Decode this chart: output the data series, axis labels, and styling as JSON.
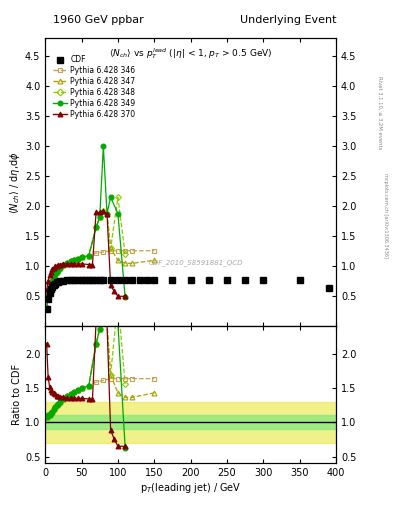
{
  "title_left": "1960 GeV ppbar",
  "title_right": "Underlying Event",
  "subtitle": "$\\langle N_{ch}\\rangle$ vs $p_T^{lead}$ ($|\\eta|$ < 1, $p_T$ > 0.5 GeV)",
  "xlabel": "p$_T$(leading jet) / GeV",
  "ylabel_main": "$\\langle N_{ch}\\rangle$ / d$\\eta$,d$\\phi$",
  "ylabel_ratio": "Ratio to CDF",
  "watermark": "CDF_2010_S8591881_QCD",
  "rivet_label": "Rivet 3.1.10, ≥ 3.2M events",
  "mcplots_label": "mcplots.cern.ch [arXiv:1306.3436]",
  "xlim": [
    0,
    400
  ],
  "ylim_main": [
    0.0,
    4.8
  ],
  "ylim_ratio": [
    0.4,
    2.4
  ],
  "yticks_main": [
    0.5,
    1.0,
    1.5,
    2.0,
    2.5,
    3.0,
    3.5,
    4.0,
    4.5
  ],
  "yticks_ratio": [
    0.5,
    1.0,
    1.5,
    2.0
  ],
  "cdf_x": [
    2,
    4,
    6,
    8,
    10,
    12,
    14,
    16,
    18,
    20,
    25,
    30,
    35,
    40,
    45,
    50,
    55,
    60,
    65,
    70,
    75,
    80,
    90,
    100,
    110,
    120,
    130,
    140,
    150,
    175,
    200,
    225,
    250,
    275,
    300,
    350,
    390
  ],
  "cdf_y": [
    0.28,
    0.45,
    0.56,
    0.62,
    0.66,
    0.69,
    0.71,
    0.73,
    0.74,
    0.75,
    0.76,
    0.77,
    0.77,
    0.77,
    0.77,
    0.77,
    0.77,
    0.77,
    0.77,
    0.77,
    0.77,
    0.77,
    0.77,
    0.77,
    0.77,
    0.77,
    0.77,
    0.77,
    0.77,
    0.77,
    0.77,
    0.77,
    0.77,
    0.77,
    0.77,
    0.77,
    0.64
  ],
  "cdf_yerr": [
    0.04,
    0.03,
    0.03,
    0.02,
    0.02,
    0.02,
    0.02,
    0.02,
    0.02,
    0.02,
    0.02,
    0.02,
    0.02,
    0.02,
    0.02,
    0.02,
    0.02,
    0.02,
    0.02,
    0.02,
    0.02,
    0.02,
    0.02,
    0.02,
    0.02,
    0.02,
    0.02,
    0.02,
    0.02,
    0.02,
    0.02,
    0.02,
    0.02,
    0.02,
    0.02,
    0.02,
    0.03
  ],
  "p346_x": [
    2,
    4,
    6,
    8,
    10,
    12,
    14,
    16,
    18,
    20,
    25,
    30,
    35,
    40,
    45,
    50,
    60,
    70,
    80,
    90,
    100,
    110,
    120,
    150
  ],
  "p346_y": [
    0.3,
    0.5,
    0.62,
    0.7,
    0.76,
    0.82,
    0.87,
    0.91,
    0.94,
    0.97,
    1.02,
    1.06,
    1.09,
    1.11,
    1.13,
    1.15,
    1.18,
    1.22,
    1.24,
    1.26,
    1.26,
    1.26,
    1.26,
    1.26
  ],
  "p347_x": [
    2,
    4,
    6,
    8,
    10,
    12,
    14,
    16,
    18,
    20,
    25,
    30,
    35,
    40,
    45,
    50,
    60,
    70,
    75,
    80,
    85,
    90,
    100,
    110,
    120,
    150
  ],
  "p347_y": [
    0.3,
    0.5,
    0.62,
    0.7,
    0.76,
    0.82,
    0.87,
    0.91,
    0.94,
    0.97,
    1.02,
    1.06,
    1.09,
    1.11,
    1.13,
    1.15,
    1.18,
    1.65,
    1.82,
    1.92,
    1.88,
    1.3,
    1.1,
    1.05,
    1.05,
    1.1
  ],
  "p348_x": [
    2,
    4,
    6,
    8,
    10,
    12,
    14,
    16,
    18,
    20,
    25,
    30,
    35,
    40,
    45,
    50,
    60,
    70,
    75,
    80,
    85,
    90,
    100,
    110
  ],
  "p348_y": [
    0.3,
    0.5,
    0.62,
    0.7,
    0.76,
    0.82,
    0.87,
    0.91,
    0.94,
    0.97,
    1.02,
    1.06,
    1.09,
    1.11,
    1.13,
    1.15,
    1.18,
    1.65,
    1.82,
    1.92,
    1.88,
    1.3,
    2.15,
    1.2
  ],
  "p349_x": [
    2,
    4,
    6,
    8,
    10,
    12,
    14,
    16,
    18,
    20,
    25,
    30,
    35,
    40,
    45,
    50,
    60,
    70,
    75,
    80,
    85,
    90,
    100,
    110
  ],
  "p349_y": [
    0.3,
    0.5,
    0.62,
    0.7,
    0.76,
    0.82,
    0.87,
    0.91,
    0.94,
    0.97,
    1.02,
    1.06,
    1.09,
    1.11,
    1.13,
    1.15,
    1.18,
    1.65,
    1.82,
    3.0,
    1.88,
    2.15,
    1.88,
    0.48
  ],
  "p370_x": [
    2,
    4,
    6,
    8,
    10,
    12,
    14,
    16,
    18,
    20,
    25,
    30,
    35,
    40,
    45,
    50,
    60,
    65,
    70,
    75,
    80,
    85,
    90,
    95,
    100,
    110
  ],
  "p370_y": [
    0.6,
    0.75,
    0.85,
    0.91,
    0.95,
    0.98,
    1.0,
    1.01,
    1.02,
    1.03,
    1.04,
    1.04,
    1.04,
    1.04,
    1.04,
    1.04,
    1.03,
    1.03,
    1.9,
    1.9,
    1.92,
    1.88,
    0.68,
    0.58,
    0.5,
    0.5
  ],
  "color_cdf": "#000000",
  "color_346": "#c8a050",
  "color_347": "#a8a000",
  "color_348": "#88cc00",
  "color_349": "#00aa00",
  "color_370": "#800000",
  "band_green": "#80e880",
  "band_yellow": "#e8e840",
  "ratio_green": [
    0.9,
    1.1
  ],
  "ratio_yellow": [
    0.7,
    1.3
  ]
}
